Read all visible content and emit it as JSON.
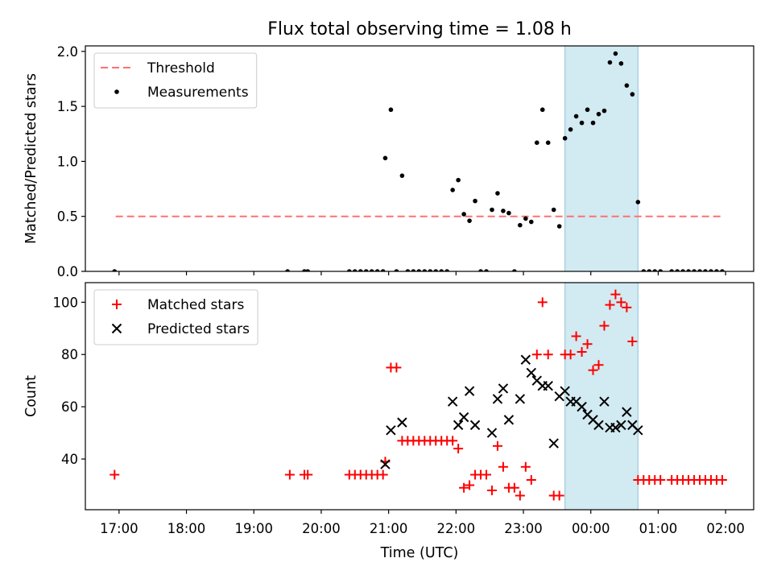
{
  "chart_data": {
    "title": "Flux total observing time = 1.08 h",
    "shared_x": {
      "xlabel": "Time (UTC)",
      "ticks": [
        "17:00",
        "18:00",
        "19:00",
        "20:00",
        "21:00",
        "22:00",
        "23:00",
        "00:00",
        "01:00",
        "02:00"
      ],
      "start": "16:30",
      "end": "02:25",
      "highlight": {
        "start": "23:37",
        "end": "00:42",
        "color": "#add8e6"
      }
    },
    "panels": [
      {
        "type": "scatter",
        "ylabel": "Matched/Predicted stars",
        "ylim": [
          0,
          2.05
        ],
        "yticks": [
          "0.0",
          "0.5",
          "1.0",
          "1.5",
          "2.0"
        ],
        "legend_placement": "top-left",
        "threshold": {
          "name": "Threshold",
          "value": 0.5,
          "from": "16:57",
          "to": "01:58",
          "color": "#ff7070"
        },
        "series": [
          {
            "name": "Measurements",
            "color": "#000000",
            "points": [
              [
                "16:56",
                0.0
              ],
              [
                "19:30",
                0.0
              ],
              [
                "19:45",
                0.0
              ],
              [
                "19:48",
                0.0
              ],
              [
                "20:25",
                0.0
              ],
              [
                "20:30",
                0.0
              ],
              [
                "20:35",
                0.0
              ],
              [
                "20:40",
                0.0
              ],
              [
                "20:45",
                0.0
              ],
              [
                "20:50",
                0.0
              ],
              [
                "20:55",
                0.0
              ],
              [
                "20:57",
                1.03
              ],
              [
                "21:02",
                1.47
              ],
              [
                "21:07",
                0.0
              ],
              [
                "21:12",
                0.87
              ],
              [
                "21:17",
                0.0
              ],
              [
                "21:22",
                0.0
              ],
              [
                "21:27",
                0.0
              ],
              [
                "21:32",
                0.0
              ],
              [
                "21:37",
                0.0
              ],
              [
                "21:42",
                0.0
              ],
              [
                "21:47",
                0.0
              ],
              [
                "21:52",
                0.0
              ],
              [
                "21:57",
                0.74
              ],
              [
                "22:02",
                0.83
              ],
              [
                "22:07",
                0.52
              ],
              [
                "22:12",
                0.46
              ],
              [
                "22:17",
                0.64
              ],
              [
                "22:22",
                0.0
              ],
              [
                "22:27",
                0.0
              ],
              [
                "22:32",
                0.56
              ],
              [
                "22:37",
                0.71
              ],
              [
                "22:42",
                0.55
              ],
              [
                "22:47",
                0.53
              ],
              [
                "22:52",
                0.0
              ],
              [
                "22:57",
                0.42
              ],
              [
                "23:02",
                0.48
              ],
              [
                "23:07",
                0.45
              ],
              [
                "23:12",
                1.17
              ],
              [
                "23:17",
                1.47
              ],
              [
                "23:22",
                1.17
              ],
              [
                "23:27",
                0.56
              ],
              [
                "23:32",
                0.41
              ],
              [
                "23:37",
                1.21
              ],
              [
                "23:42",
                1.29
              ],
              [
                "23:47",
                1.41
              ],
              [
                "23:52",
                1.35
              ],
              [
                "23:57",
                1.47
              ],
              [
                "00:02",
                1.35
              ],
              [
                "00:07",
                1.43
              ],
              [
                "00:12",
                1.46
              ],
              [
                "00:17",
                1.9
              ],
              [
                "00:22",
                1.98
              ],
              [
                "00:27",
                1.89
              ],
              [
                "00:32",
                1.69
              ],
              [
                "00:37",
                1.61
              ],
              [
                "00:42",
                0.63
              ],
              [
                "00:47",
                0.0
              ],
              [
                "00:52",
                0.0
              ],
              [
                "00:57",
                0.0
              ],
              [
                "01:02",
                0.0
              ],
              [
                "01:12",
                0.0
              ],
              [
                "01:17",
                0.0
              ],
              [
                "01:22",
                0.0
              ],
              [
                "01:27",
                0.0
              ],
              [
                "01:32",
                0.0
              ],
              [
                "01:37",
                0.0
              ],
              [
                "01:42",
                0.0
              ],
              [
                "01:47",
                0.0
              ],
              [
                "01:52",
                0.0
              ],
              [
                "01:57",
                0.0
              ]
            ]
          }
        ]
      },
      {
        "type": "scatter",
        "ylabel": "Count",
        "ylim": [
          20.6,
          107.5
        ],
        "yticks": [
          "40",
          "60",
          "80",
          "100"
        ],
        "legend_placement": "top-left",
        "series": [
          {
            "name": "Matched stars",
            "marker": "plus",
            "color": "#ff0000",
            "points": [
              [
                "16:56",
                34
              ],
              [
                "19:32",
                34
              ],
              [
                "19:45",
                34
              ],
              [
                "19:48",
                34
              ],
              [
                "20:25",
                34
              ],
              [
                "20:30",
                34
              ],
              [
                "20:35",
                34
              ],
              [
                "20:40",
                34
              ],
              [
                "20:45",
                34
              ],
              [
                "20:50",
                34
              ],
              [
                "20:55",
                34
              ],
              [
                "20:57",
                39
              ],
              [
                "21:02",
                75
              ],
              [
                "21:07",
                75
              ],
              [
                "21:12",
                47
              ],
              [
                "21:17",
                47
              ],
              [
                "21:22",
                47
              ],
              [
                "21:27",
                47
              ],
              [
                "21:32",
                47
              ],
              [
                "21:37",
                47
              ],
              [
                "21:42",
                47
              ],
              [
                "21:47",
                47
              ],
              [
                "21:52",
                47
              ],
              [
                "21:57",
                47
              ],
              [
                "22:02",
                44
              ],
              [
                "22:07",
                29
              ],
              [
                "22:12",
                30
              ],
              [
                "22:17",
                34
              ],
              [
                "22:22",
                34
              ],
              [
                "22:27",
                34
              ],
              [
                "22:32",
                28
              ],
              [
                "22:37",
                45
              ],
              [
                "22:42",
                37
              ],
              [
                "22:47",
                29
              ],
              [
                "22:52",
                29
              ],
              [
                "22:57",
                26
              ],
              [
                "23:02",
                37
              ],
              [
                "23:07",
                32
              ],
              [
                "23:12",
                80
              ],
              [
                "23:17",
                100
              ],
              [
                "23:22",
                80
              ],
              [
                "23:27",
                26
              ],
              [
                "23:32",
                26
              ],
              [
                "23:37",
                80
              ],
              [
                "23:42",
                80
              ],
              [
                "23:47",
                87
              ],
              [
                "23:52",
                81
              ],
              [
                "23:57",
                84
              ],
              [
                "00:02",
                74
              ],
              [
                "00:07",
                76
              ],
              [
                "00:12",
                91
              ],
              [
                "00:17",
                99
              ],
              [
                "00:22",
                103
              ],
              [
                "00:27",
                100
              ],
              [
                "00:32",
                98
              ],
              [
                "00:37",
                85
              ],
              [
                "00:42",
                32
              ],
              [
                "00:47",
                32
              ],
              [
                "00:52",
                32
              ],
              [
                "00:57",
                32
              ],
              [
                "01:02",
                32
              ],
              [
                "01:12",
                32
              ],
              [
                "01:17",
                32
              ],
              [
                "01:22",
                32
              ],
              [
                "01:27",
                32
              ],
              [
                "01:32",
                32
              ],
              [
                "01:37",
                32
              ],
              [
                "01:42",
                32
              ],
              [
                "01:47",
                32
              ],
              [
                "01:52",
                32
              ],
              [
                "01:57",
                32
              ]
            ]
          },
          {
            "name": "Predicted stars",
            "marker": "x",
            "color": "#000000",
            "points": [
              [
                "20:57",
                38
              ],
              [
                "21:02",
                51
              ],
              [
                "21:12",
                54
              ],
              [
                "21:57",
                62
              ],
              [
                "22:02",
                53
              ],
              [
                "22:07",
                56
              ],
              [
                "22:12",
                66
              ],
              [
                "22:17",
                53
              ],
              [
                "22:32",
                50
              ],
              [
                "22:37",
                63
              ],
              [
                "22:42",
                67
              ],
              [
                "22:47",
                55
              ],
              [
                "22:57",
                63
              ],
              [
                "23:02",
                78
              ],
              [
                "23:07",
                73
              ],
              [
                "23:12",
                70
              ],
              [
                "23:17",
                68
              ],
              [
                "23:22",
                68
              ],
              [
                "23:27",
                46
              ],
              [
                "23:32",
                64
              ],
              [
                "23:37",
                66
              ],
              [
                "23:42",
                62
              ],
              [
                "23:47",
                62
              ],
              [
                "23:52",
                60
              ],
              [
                "23:57",
                57
              ],
              [
                "00:02",
                55
              ],
              [
                "00:07",
                53
              ],
              [
                "00:12",
                62
              ],
              [
                "00:17",
                52
              ],
              [
                "00:22",
                52
              ],
              [
                "00:27",
                53
              ],
              [
                "00:32",
                58
              ],
              [
                "00:37",
                53
              ],
              [
                "00:42",
                51
              ]
            ]
          }
        ]
      }
    ]
  }
}
